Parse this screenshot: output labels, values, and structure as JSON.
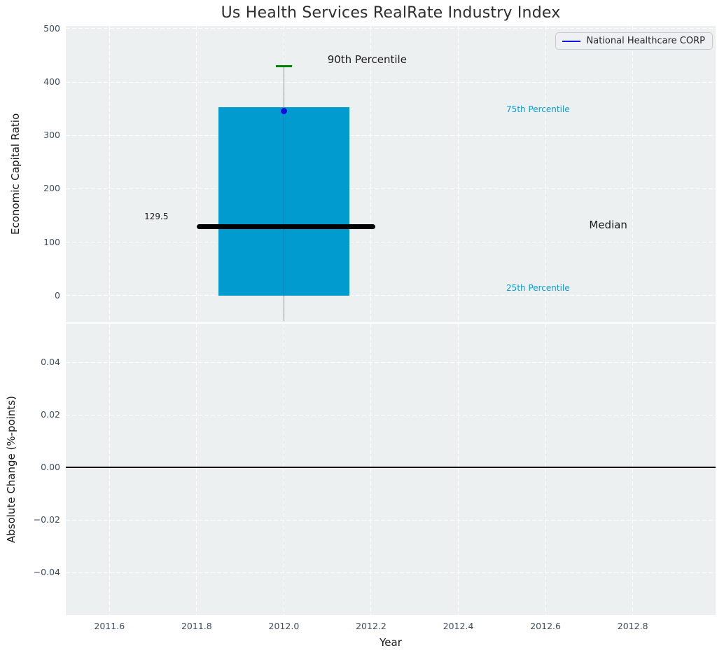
{
  "legend": {
    "label": "National Healthcare CORP",
    "line_color": "#1414e8"
  },
  "colors": {
    "figure_background": "#ffffff",
    "axes_background": "#edf0f1",
    "grid": "#ffffff",
    "tick_label": "#3d4d5d",
    "title": "#2d2d2d",
    "percentile_label": "#119bd3"
  },
  "chart_data": [
    {
      "type": "box",
      "panel": "top",
      "title": "Us Health Services RealRate Industry Index",
      "ylabel": "Economic Capital Ratio",
      "xlim": [
        2011.5,
        2012.99
      ],
      "ylim": [
        -50,
        505
      ],
      "grid": true,
      "legend_position": "upper right",
      "show_xtick_labels": false,
      "xticks": [
        {
          "v": 2011.6,
          "label": "2011.6"
        },
        {
          "v": 2011.8,
          "label": "2011.8"
        },
        {
          "v": 2012.0,
          "label": "2012.0"
        },
        {
          "v": 2012.2,
          "label": "2012.2"
        },
        {
          "v": 2012.4,
          "label": "2012.4"
        },
        {
          "v": 2012.6,
          "label": "2012.6"
        },
        {
          "v": 2012.8,
          "label": "2012.8"
        }
      ],
      "yticks": [
        {
          "v": 0,
          "label": "0"
        },
        {
          "v": 100,
          "label": "100"
        },
        {
          "v": 200,
          "label": "200"
        },
        {
          "v": 300,
          "label": "300"
        },
        {
          "v": 400,
          "label": "400"
        },
        {
          "v": 500,
          "label": "500"
        }
      ],
      "box": {
        "x_left": 2011.85,
        "x_right": 2012.15,
        "q25": 0,
        "q75": 353,
        "fill": "#029bcf"
      },
      "median_line": {
        "value": 129.5,
        "x_left": 2011.8,
        "x_right": 2012.21,
        "color": "#000000"
      },
      "whisker": {
        "x": 2012.0,
        "y_top": 429,
        "y_bottom": -47,
        "color": "rgba(70,70,70,0.55)"
      },
      "percentile_90_cap": {
        "x": 2012.0,
        "y": 429,
        "half_width": 0.018,
        "color": "#008000"
      },
      "company_point": {
        "series": "National Healthcare CORP",
        "x": 2012.0,
        "y": 346,
        "color": "#0d0de0"
      },
      "annotations": [
        {
          "text": "90th Percentile",
          "x": 2012.1,
          "y": 440,
          "color": "#1a1a1a",
          "size": 15
        },
        {
          "text": "75th Percentile",
          "x": 2012.51,
          "y": 347,
          "color": "#119bd3",
          "size": 12
        },
        {
          "text": "Median",
          "x": 2012.7,
          "y": 131,
          "color": "#1a1a1a",
          "size": 15
        },
        {
          "text": "25th Percentile",
          "x": 2012.51,
          "y": 12,
          "color": "#119bd3",
          "size": 12
        },
        {
          "text": "129.5",
          "x": 2011.68,
          "y": 146,
          "color": "#1a1a1a",
          "size": 12
        }
      ]
    },
    {
      "type": "line",
      "panel": "bottom",
      "ylabel": "Absolute Change (%-points)",
      "xlabel": "Year",
      "xlim": [
        2011.5,
        2012.99
      ],
      "ylim": [
        -0.0562,
        0.0547
      ],
      "grid": true,
      "show_xtick_labels": true,
      "xticks": [
        {
          "v": 2011.6,
          "label": "2011.6"
        },
        {
          "v": 2011.8,
          "label": "2011.8"
        },
        {
          "v": 2012.0,
          "label": "2012.0"
        },
        {
          "v": 2012.2,
          "label": "2012.2"
        },
        {
          "v": 2012.4,
          "label": "2012.4"
        },
        {
          "v": 2012.6,
          "label": "2012.6"
        },
        {
          "v": 2012.8,
          "label": "2012.8"
        }
      ],
      "yticks": [
        {
          "v": -0.04,
          "label": "−0.04"
        },
        {
          "v": -0.02,
          "label": "−0.02"
        },
        {
          "v": 0,
          "label": "0.00"
        },
        {
          "v": 0.02,
          "label": "0.02"
        },
        {
          "v": 0.04,
          "label": "0.04"
        }
      ],
      "zero_line": {
        "y": 0,
        "color": "#000000"
      }
    }
  ]
}
